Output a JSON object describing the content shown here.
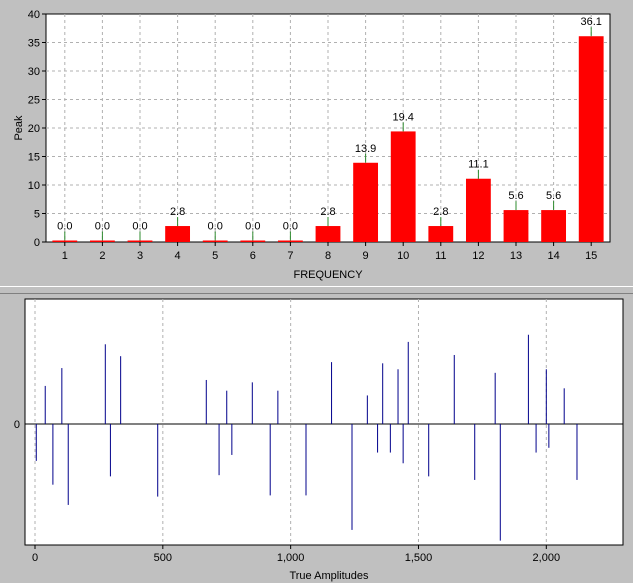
{
  "chart_data": [
    {
      "type": "bar",
      "categories": [
        "1",
        "2",
        "3",
        "4",
        "5",
        "6",
        "7",
        "8",
        "9",
        "10",
        "11",
        "12",
        "13",
        "14",
        "15"
      ],
      "values": [
        0.0,
        0.0,
        0.0,
        2.8,
        0.0,
        0.0,
        0.0,
        2.8,
        13.9,
        19.4,
        2.8,
        11.1,
        5.6,
        5.6,
        36.1
      ],
      "value_labels": [
        "0.0",
        "0.0",
        "0.0",
        "2.8",
        "0.0",
        "0.0",
        "0.0",
        "2.8",
        "13.9",
        "19.4",
        "2.8",
        "11.1",
        "5.6",
        "5.6",
        "36.1"
      ],
      "xlabel": "FREQUENCY",
      "ylabel": "Peak",
      "ylim": [
        0,
        40
      ],
      "yticks": [
        "0",
        "5",
        "10",
        "15",
        "20",
        "25",
        "30",
        "35",
        "40"
      ],
      "grid": true,
      "bar_color": "#ff0000",
      "xlabel_color": "#ff0000"
    },
    {
      "type": "stem",
      "xlabel": "True Amplitudes",
      "xlabel_color": "#00008b",
      "line_color": "#00008b",
      "xlim": [
        0,
        2300
      ],
      "xticks": [
        "0",
        "500",
        "1,000",
        "1,500",
        "2,000"
      ],
      "ytick": "0",
      "ylim": [
        -1,
        1
      ],
      "grid": true,
      "x": [
        5,
        40,
        70,
        105,
        130,
        275,
        295,
        335,
        480,
        670,
        720,
        750,
        770,
        850,
        920,
        950,
        1060,
        1160,
        1240,
        1300,
        1340,
        1360,
        1390,
        1420,
        1440,
        1460,
        1540,
        1640,
        1720,
        1800,
        1820,
        1930,
        1960,
        2000,
        2010,
        2070,
        2120
      ],
      "y": [
        -0.31,
        0.32,
        -0.51,
        0.47,
        -0.68,
        0.67,
        -0.44,
        0.57,
        -0.61,
        0.37,
        -0.43,
        0.28,
        -0.26,
        0.35,
        -0.6,
        0.28,
        -0.6,
        0.52,
        -0.89,
        0.24,
        -0.24,
        0.51,
        -0.24,
        0.46,
        -0.33,
        0.69,
        -0.44,
        0.58,
        -0.47,
        0.43,
        -0.98,
        0.75,
        -0.24,
        0.46,
        -0.2,
        0.3,
        -0.47
      ]
    }
  ]
}
